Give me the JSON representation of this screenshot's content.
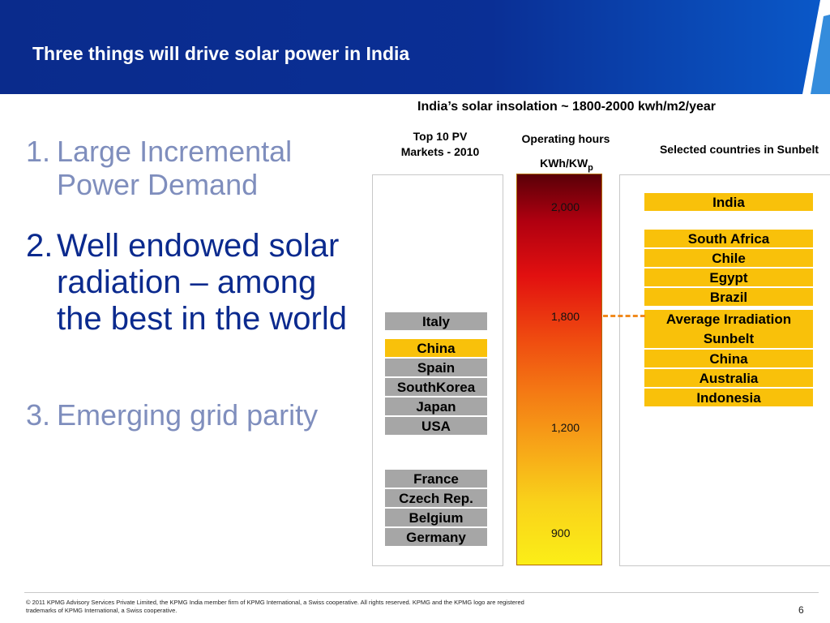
{
  "header": {
    "title": "Three things will drive solar power in India"
  },
  "points": [
    {
      "num": "1.",
      "text": "Large Incremental Power Demand"
    },
    {
      "num": "2.",
      "text": "Well endowed solar radiation – among the best in the world"
    },
    {
      "num": "3.",
      "text": "Emerging grid parity"
    }
  ],
  "chart": {
    "insolation_note": "India’s solar insolation ~ 1800-2000 kwh/m2/year",
    "top10_heading": "Top 10 PV Markets - 2010",
    "operating_hours_heading": "Operating hours",
    "kwh_label": "KWh/KW",
    "kwh_sub": "p",
    "sunbelt_heading": "Selected countries in Sunbelt",
    "scale": [
      "2,000",
      "1,800",
      "1,200",
      "900"
    ],
    "top10_markets": [
      "Italy",
      "China",
      "Spain",
      "SouthKorea",
      "Japan",
      "USA",
      "France",
      "Czech Rep.",
      "Belgium",
      "Germany"
    ],
    "sunbelt_countries": [
      "India",
      "South Africa",
      "Chile",
      "Egypt",
      "Brazil",
      "Average Irradiation Sunbelt",
      "China",
      "Australia",
      "Indonesia"
    ]
  },
  "footer": {
    "copyright": "© 2011 KPMG Advisory Services Private Limited, the KPMG India member firm of KPMG International, a Swiss cooperative. All rights reserved. KPMG and the KPMG logo are registered trademarks of KPMG International, a Swiss cooperative.",
    "page": "6"
  },
  "colors": {
    "banner": "#0b2a8e",
    "accent_gold": "#f9c10a",
    "gray_box": "#a6a6a6",
    "dash": "#f08a1e"
  }
}
